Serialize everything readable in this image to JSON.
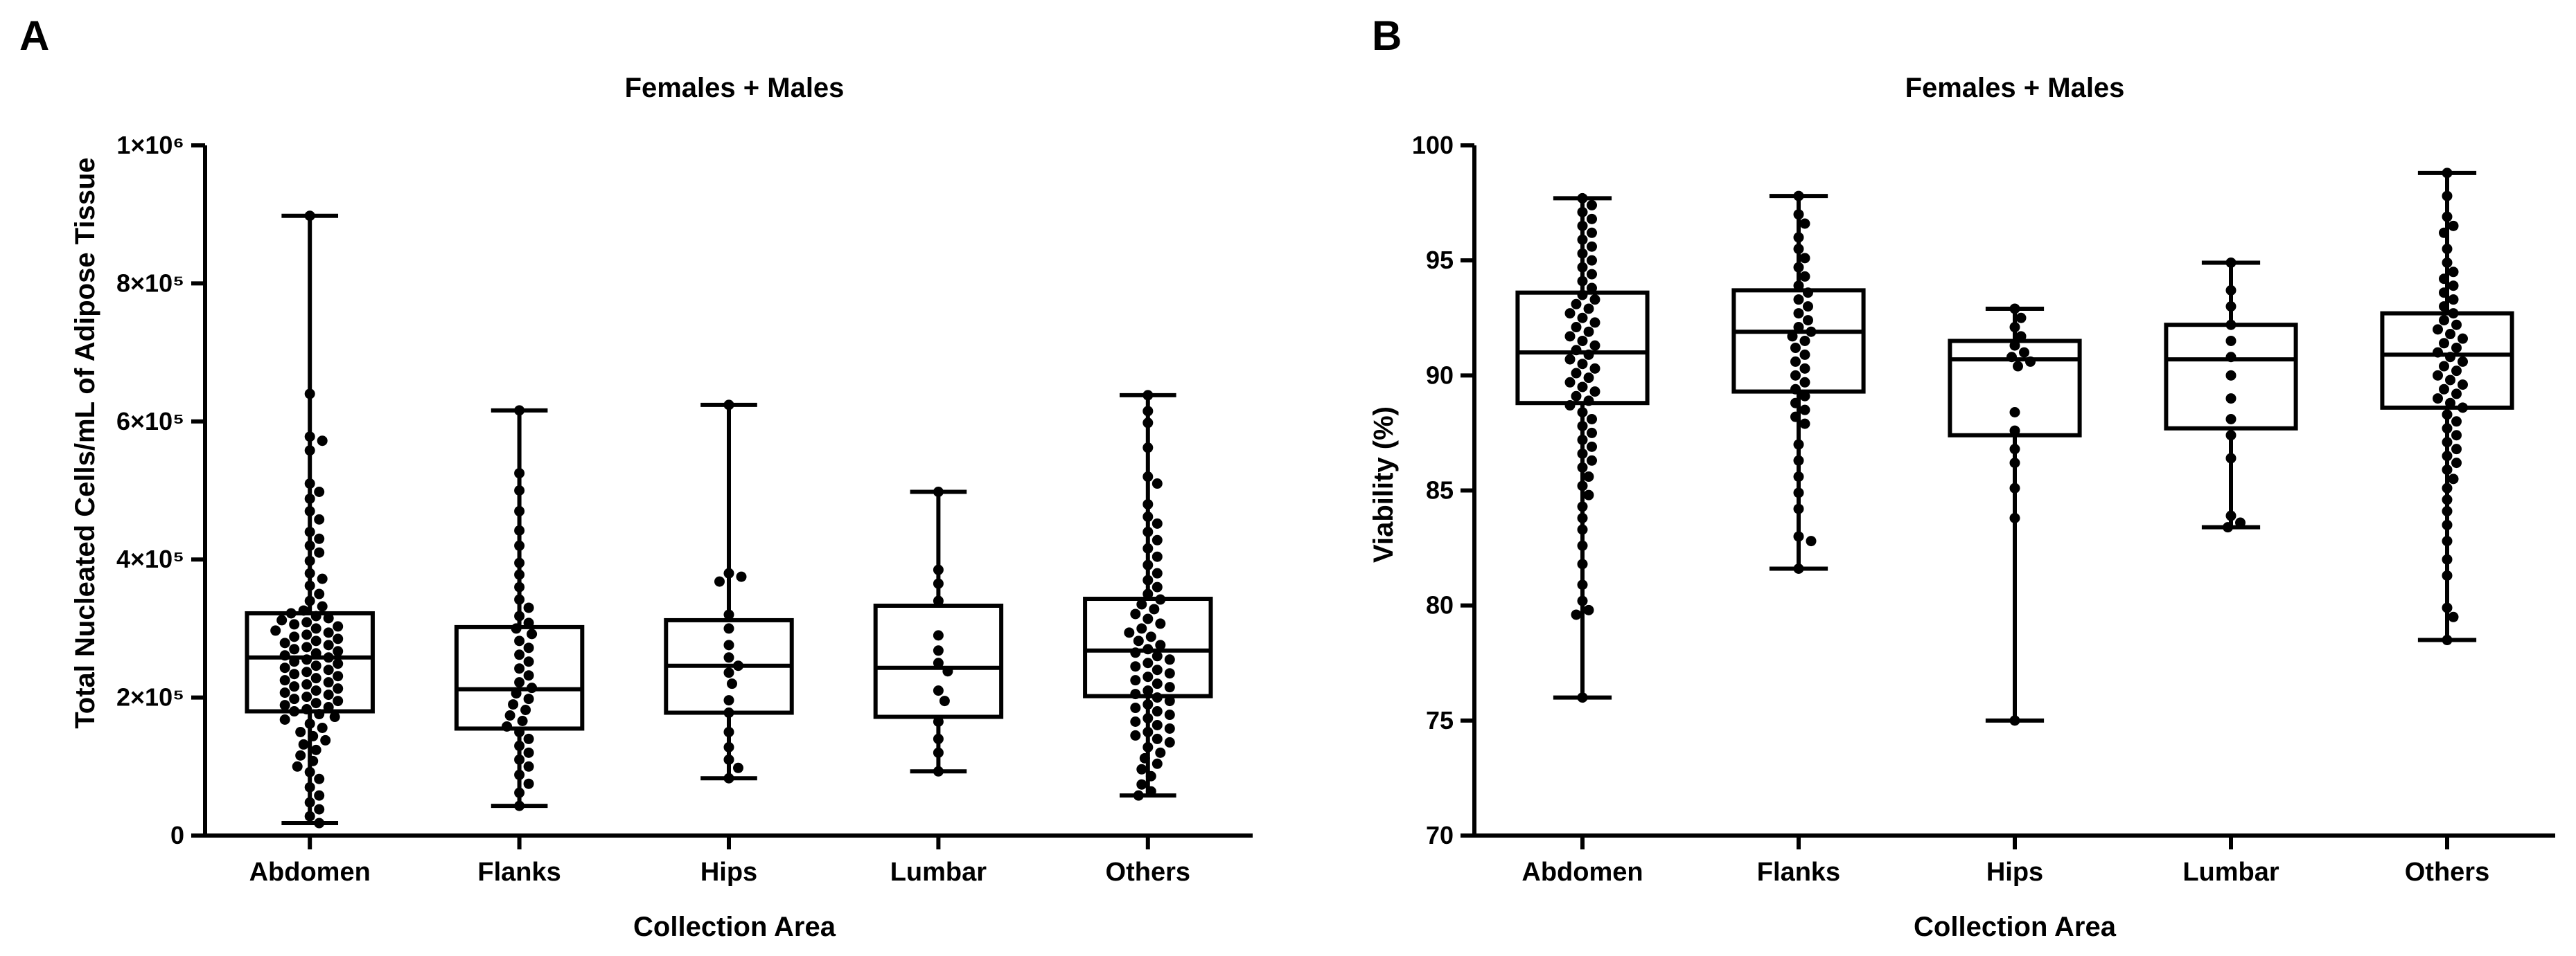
{
  "chart_data": [
    {
      "panel": "A",
      "type": "box",
      "title": "Females + Males",
      "xlabel": "Collection Area",
      "ylabel": "Total Nucleated Cells/mL of Adipose Tissue",
      "ylim": [
        0,
        1000000
      ],
      "yticks": [
        0,
        200000,
        400000,
        600000,
        800000,
        1000000
      ],
      "ytick_labels": [
        "0",
        "2×10⁵",
        "4×10⁵",
        "6×10⁵",
        "8×10⁵",
        "1×10⁶"
      ],
      "categories": [
        "Abdomen",
        "Flanks",
        "Hips",
        "Lumbar",
        "Others"
      ],
      "grid": false,
      "boxes": [
        {
          "min": 18000,
          "q1": 180000,
          "median": 258000,
          "q3": 322000,
          "max": 898000,
          "points": [
            898000,
            640000,
            578000,
            572000,
            558000,
            510000,
            498000,
            488000,
            470000,
            458000,
            440000,
            430000,
            420000,
            410000,
            398000,
            380000,
            372000,
            362000,
            350000,
            340000,
            332000,
            326000,
            322000,
            318000,
            315000,
            312000,
            309000,
            306000,
            303000,
            300000,
            297000,
            294000,
            291000,
            288000,
            285000,
            282000,
            279000,
            276000,
            273000,
            270000,
            267000,
            264000,
            261000,
            258000,
            255000,
            252000,
            249000,
            246000,
            243000,
            240000,
            237000,
            234000,
            231000,
            228000,
            225000,
            222000,
            219000,
            216000,
            213000,
            210000,
            207000,
            204000,
            201000,
            198000,
            195000,
            192000,
            189000,
            186000,
            183000,
            180000,
            176000,
            172000,
            168000,
            162000,
            156000,
            150000,
            144000,
            138000,
            132000,
            124000,
            116000,
            108000,
            100000,
            92000,
            82000,
            70000,
            58000,
            48000,
            38000,
            28000,
            18000
          ]
        },
        {
          "min": 43000,
          "q1": 155000,
          "median": 212000,
          "q3": 302000,
          "max": 616000,
          "points": [
            616000,
            525000,
            500000,
            470000,
            442000,
            420000,
            395000,
            378000,
            360000,
            342000,
            330000,
            318000,
            308000,
            300000,
            292000,
            282000,
            272000,
            262000,
            252000,
            242000,
            232000,
            222000,
            214000,
            206000,
            198000,
            190000,
            182000,
            174000,
            166000,
            158000,
            150000,
            140000,
            130000,
            120000,
            110000,
            100000,
            88000,
            75000,
            62000,
            43000
          ]
        },
        {
          "min": 83000,
          "q1": 178000,
          "median": 246000,
          "q3": 312000,
          "max": 624000,
          "points": [
            624000,
            380000,
            375000,
            368000,
            320000,
            300000,
            276000,
            258000,
            246000,
            236000,
            220000,
            196000,
            178000,
            150000,
            128000,
            110000,
            98000,
            83000
          ]
        },
        {
          "min": 93000,
          "q1": 172000,
          "median": 243000,
          "q3": 333000,
          "max": 498000,
          "points": [
            498000,
            385000,
            365000,
            340000,
            290000,
            268000,
            250000,
            238000,
            210000,
            195000,
            165000,
            140000,
            120000,
            93000
          ]
        },
        {
          "min": 58000,
          "q1": 202000,
          "median": 268000,
          "q3": 343000,
          "max": 638000,
          "points": [
            638000,
            615000,
            598000,
            562000,
            520000,
            510000,
            480000,
            462000,
            452000,
            440000,
            428000,
            416000,
            404000,
            392000,
            380000,
            370000,
            360000,
            350000,
            342000,
            335000,
            328000,
            321000,
            314000,
            307000,
            300000,
            294000,
            288000,
            282000,
            276000,
            270000,
            265000,
            260000,
            255000,
            250000,
            245000,
            240000,
            235000,
            230000,
            225000,
            220000,
            215000,
            210000,
            205000,
            200000,
            195000,
            190000,
            185000,
            180000,
            175000,
            170000,
            165000,
            160000,
            155000,
            150000,
            145000,
            140000,
            135000,
            128000,
            120000,
            112000,
            104000,
            96000,
            86000,
            74000,
            64000,
            58000
          ]
        }
      ]
    },
    {
      "panel": "B",
      "type": "box",
      "title": "Females + Males",
      "xlabel": "Collection Area",
      "ylabel": "Viability (%)",
      "ylim": [
        70,
        100
      ],
      "yticks": [
        70,
        75,
        80,
        85,
        90,
        95,
        100
      ],
      "ytick_labels": [
        "70",
        "75",
        "80",
        "85",
        "90",
        "95",
        "100"
      ],
      "categories": [
        "Abdomen",
        "Flanks",
        "Hips",
        "Lumbar",
        "Others"
      ],
      "grid": false,
      "boxes": [
        {
          "min": 76.0,
          "q1": 88.8,
          "median": 91.0,
          "q3": 93.6,
          "max": 97.7,
          "points": [
            97.7,
            97.4,
            97.1,
            96.8,
            96.5,
            96.2,
            95.9,
            95.6,
            95.3,
            95.0,
            94.7,
            94.4,
            94.1,
            93.8,
            93.5,
            93.3,
            93.1,
            92.9,
            92.7,
            92.5,
            92.3,
            92.1,
            91.9,
            91.7,
            91.5,
            91.3,
            91.1,
            90.9,
            90.7,
            90.5,
            90.3,
            90.1,
            89.9,
            89.7,
            89.5,
            89.3,
            89.1,
            88.9,
            88.7,
            88.4,
            88.1,
            87.8,
            87.5,
            87.2,
            86.9,
            86.6,
            86.3,
            86.0,
            85.6,
            85.2,
            84.8,
            84.3,
            83.8,
            83.3,
            82.6,
            81.8,
            80.9,
            80.2,
            79.8,
            79.6,
            76.0
          ]
        },
        {
          "min": 81.6,
          "q1": 89.3,
          "median": 91.9,
          "q3": 93.7,
          "max": 97.8,
          "points": [
            97.8,
            97.0,
            96.6,
            96.0,
            95.5,
            95.1,
            94.7,
            94.3,
            93.9,
            93.6,
            93.3,
            93.0,
            92.7,
            92.4,
            92.1,
            91.9,
            91.7,
            91.5,
            91.2,
            90.9,
            90.6,
            90.3,
            90.0,
            89.7,
            89.4,
            89.1,
            88.8,
            88.5,
            88.2,
            87.9,
            87.0,
            86.3,
            85.6,
            84.9,
            84.2,
            83.0,
            82.8,
            81.6
          ]
        },
        {
          "min": 75.0,
          "q1": 87.4,
          "median": 90.7,
          "q3": 91.5,
          "max": 92.9,
          "points": [
            92.9,
            92.5,
            92.1,
            91.7,
            91.3,
            91.0,
            90.8,
            90.6,
            90.4,
            88.4,
            87.6,
            86.8,
            86.2,
            85.1,
            83.8,
            75.0
          ]
        },
        {
          "min": 83.4,
          "q1": 87.7,
          "median": 90.7,
          "q3": 92.2,
          "max": 94.9,
          "points": [
            94.9,
            93.7,
            93.0,
            92.2,
            91.5,
            90.8,
            90.0,
            89.0,
            88.1,
            87.4,
            86.4,
            83.9,
            83.6,
            83.4
          ]
        },
        {
          "min": 78.5,
          "q1": 88.6,
          "median": 90.9,
          "q3": 92.7,
          "max": 98.8,
          "points": [
            98.8,
            97.8,
            96.9,
            96.5,
            96.2,
            95.5,
            94.9,
            94.5,
            94.2,
            93.9,
            93.6,
            93.3,
            93.0,
            92.7,
            92.4,
            92.2,
            92.0,
            91.8,
            91.6,
            91.4,
            91.2,
            91.0,
            90.8,
            90.6,
            90.4,
            90.2,
            90.0,
            89.8,
            89.6,
            89.4,
            89.2,
            89.0,
            88.8,
            88.6,
            88.3,
            88.0,
            87.7,
            87.4,
            87.1,
            86.8,
            86.5,
            86.2,
            85.9,
            85.5,
            85.1,
            84.6,
            84.1,
            83.5,
            82.8,
            82.0,
            81.3,
            79.9,
            79.5,
            78.5
          ]
        }
      ]
    }
  ]
}
